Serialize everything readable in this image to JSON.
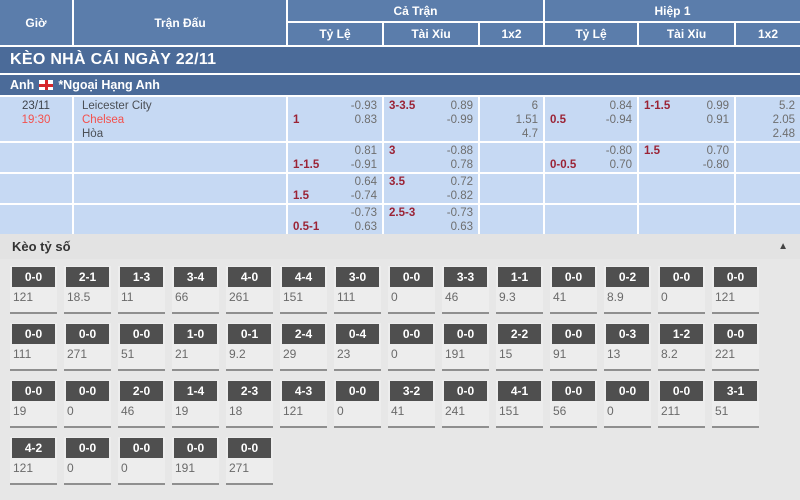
{
  "colors": {
    "header_blue": "#5b7dab",
    "banner_blue": "#4b6b99",
    "row_blue": "#c6d9f3",
    "accent_red": "#f4504c",
    "handicap_maroon": "#9b2335",
    "tile_dark": "#4f4f4f"
  },
  "banners": {
    "main": "KÈO NHÀ CÁI NGÀY 22/11",
    "league_country": "Anh",
    "league_flag_icon": "england-flag",
    "league_name": "*Ngoại Hạng Anh"
  },
  "odds": {
    "header": {
      "time": "Giờ",
      "match": "Trận Đấu",
      "full_match": "Cả Trận",
      "first_half": "Hiệp 1",
      "handicap": "Tỷ Lệ",
      "over_under": "Tài Xỉu",
      "x12": "1x2"
    },
    "rows": [
      {
        "date": "23/11",
        "time": "19:30",
        "teams": [
          {
            "name": "Leicester City",
            "red": false
          },
          {
            "name": "Chelsea",
            "red": true
          },
          {
            "name": "Hòa",
            "red": false
          }
        ],
        "cells": {
          "ft_hdp": [
            [
              "",
              "-0.93"
            ],
            [
              "1",
              "0.83"
            ]
          ],
          "ft_ou": [
            [
              "3-3.5",
              "0.89"
            ],
            [
              "",
              "-0.99"
            ]
          ],
          "ft_1x2": [
            "6",
            "1.51",
            "4.7"
          ],
          "fh_hdp": [
            [
              "",
              "0.84"
            ],
            [
              "0.5",
              "-0.94"
            ]
          ],
          "fh_ou": [
            [
              "1-1.5",
              "0.99"
            ],
            [
              "",
              "0.91"
            ]
          ],
          "fh_1x2": [
            "5.2",
            "2.05",
            "2.48"
          ]
        }
      },
      {
        "cells": {
          "ft_hdp": [
            [
              "",
              "0.81"
            ],
            [
              "1-1.5",
              "-0.91"
            ]
          ],
          "ft_ou": [
            [
              "3",
              "-0.88"
            ],
            [
              "",
              "0.78"
            ]
          ],
          "ft_1x2": [],
          "fh_hdp": [
            [
              "",
              "-0.80"
            ],
            [
              "0-0.5",
              "0.70"
            ]
          ],
          "fh_ou": [
            [
              "1.5",
              "0.70"
            ],
            [
              "",
              "-0.80"
            ]
          ],
          "fh_1x2": []
        }
      },
      {
        "cells": {
          "ft_hdp": [
            [
              "",
              "0.64"
            ],
            [
              "1.5",
              "-0.74"
            ]
          ],
          "ft_ou": [
            [
              "3.5",
              "0.72"
            ],
            [
              "",
              "-0.82"
            ]
          ],
          "ft_1x2": [],
          "fh_hdp": [],
          "fh_ou": [],
          "fh_1x2": []
        }
      },
      {
        "cells": {
          "ft_hdp": [
            [
              "",
              "-0.73"
            ],
            [
              "0.5-1",
              "0.63"
            ]
          ],
          "ft_ou": [
            [
              "2.5-3",
              "-0.73"
            ],
            [
              "",
              "0.63"
            ]
          ],
          "ft_1x2": [],
          "fh_hdp": [],
          "fh_ou": [],
          "fh_1x2": []
        }
      }
    ]
  },
  "score_section": {
    "title": "Kèo tỷ số",
    "collapse_icon": "▲",
    "rows": [
      [
        [
          "0-0",
          "121"
        ],
        [
          "2-1",
          "18.5"
        ],
        [
          "1-3",
          "11"
        ],
        [
          "3-4",
          "66"
        ],
        [
          "4-0",
          "261"
        ],
        [
          "4-4",
          "151"
        ],
        [
          "3-0",
          "111"
        ],
        [
          "0-0",
          "0"
        ],
        [
          "3-3",
          "46"
        ],
        [
          "1-1",
          "9.3"
        ],
        [
          "0-0",
          "41"
        ],
        [
          "0-2",
          "8.9"
        ],
        [
          "0-0",
          "0"
        ],
        [
          "0-0",
          "121"
        ]
      ],
      [
        [
          "0-0",
          "111"
        ],
        [
          "0-0",
          "271"
        ],
        [
          "0-0",
          "51"
        ],
        [
          "1-0",
          "21"
        ],
        [
          "0-1",
          "9.2"
        ],
        [
          "2-4",
          "29"
        ],
        [
          "0-4",
          "23"
        ],
        [
          "0-0",
          "0"
        ],
        [
          "0-0",
          "191"
        ],
        [
          "2-2",
          "15"
        ],
        [
          "0-0",
          "91"
        ],
        [
          "0-3",
          "13"
        ],
        [
          "1-2",
          "8.2"
        ],
        [
          "0-0",
          "221"
        ]
      ],
      [
        [
          "0-0",
          "19"
        ],
        [
          "0-0",
          "0"
        ],
        [
          "2-0",
          "46"
        ],
        [
          "1-4",
          "19"
        ],
        [
          "2-3",
          "18"
        ],
        [
          "4-3",
          "121"
        ],
        [
          "0-0",
          "0"
        ],
        [
          "3-2",
          "41"
        ],
        [
          "0-0",
          "241"
        ],
        [
          "4-1",
          "151"
        ],
        [
          "0-0",
          "56"
        ],
        [
          "0-0",
          "0"
        ],
        [
          "0-0",
          "211"
        ],
        [
          "3-1",
          "51"
        ]
      ],
      [
        [
          "4-2",
          "121"
        ],
        [
          "0-0",
          "0"
        ],
        [
          "0-0",
          "0"
        ],
        [
          "0-0",
          "191"
        ],
        [
          "0-0",
          "271"
        ]
      ]
    ]
  }
}
